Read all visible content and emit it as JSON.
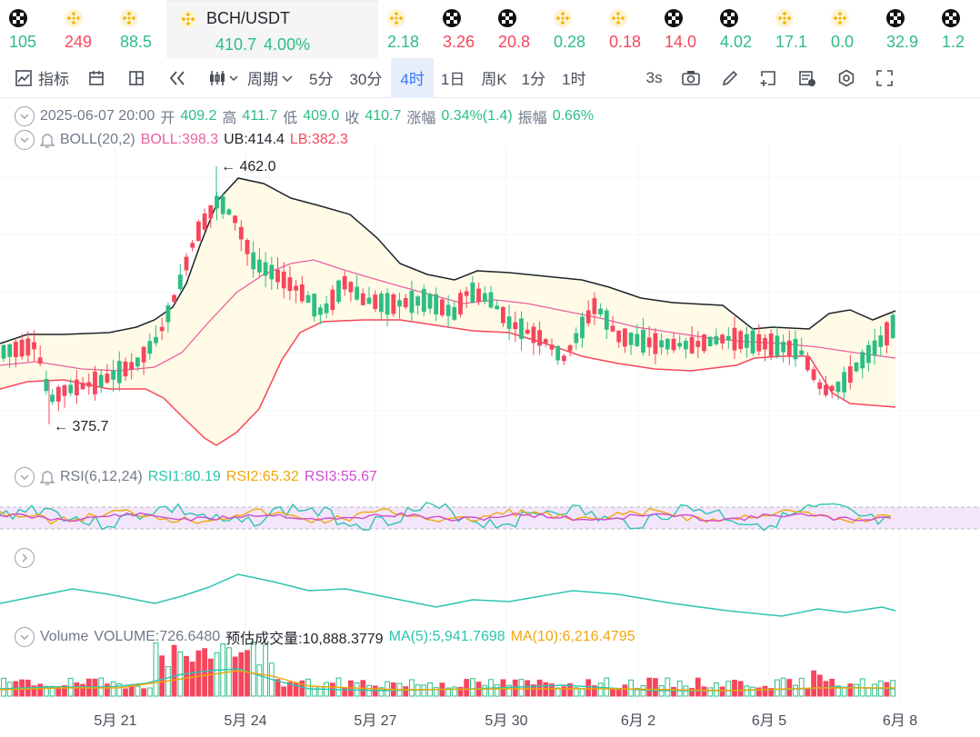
{
  "ticker": [
    {
      "icon": "okx-icon",
      "price": "105",
      "dir": "up"
    },
    {
      "icon": "bnb-icon",
      "price": "249",
      "dir": "down"
    },
    {
      "icon": "bnb-icon",
      "price": "88.5",
      "dir": "up"
    },
    {
      "icon": "bnb-icon",
      "pair": "BCH/USDT",
      "price": "410.7",
      "change": "4.00%",
      "dir": "up",
      "active": true
    },
    {
      "icon": "bnb-icon",
      "price": "2.18",
      "dir": "up"
    },
    {
      "icon": "okx-icon",
      "price": "3.26",
      "dir": "down"
    },
    {
      "icon": "okx-icon",
      "price": "20.8",
      "dir": "down"
    },
    {
      "icon": "bnb-icon",
      "price": "0.28",
      "dir": "up"
    },
    {
      "icon": "bnb-icon",
      "price": "0.18",
      "dir": "down"
    },
    {
      "icon": "okx-icon",
      "price": "14.0",
      "dir": "down"
    },
    {
      "icon": "okx-icon",
      "price": "4.02",
      "dir": "up"
    },
    {
      "icon": "bnb-icon",
      "price": "17.1",
      "dir": "up"
    },
    {
      "icon": "bnb-icon",
      "price": "0.0",
      "dir": "up"
    },
    {
      "icon": "okx-icon",
      "price": "32.9",
      "dir": "up"
    },
    {
      "icon": "okx-icon",
      "price": "1.2",
      "dir": "up"
    }
  ],
  "toolbar": {
    "indicators": "指标",
    "period": "周期",
    "intervals": [
      "5分",
      "30分",
      "4时",
      "1日",
      "周K",
      "1分",
      "1时"
    ],
    "active_interval": "4时",
    "refresh": "3s"
  },
  "ohlc": {
    "datetime": "2025-06-07 20:00",
    "open_label": "开",
    "open": "409.2",
    "high_label": "高",
    "high": "411.7",
    "low_label": "低",
    "low": "409.0",
    "close_label": "收",
    "close": "410.7",
    "change_label": "涨幅",
    "change": "0.34%(1.4)",
    "amp_label": "振幅",
    "amp": "0.66%"
  },
  "boll": {
    "name": "BOLL(20,2)",
    "boll": "BOLL:398.3",
    "ub": "UB:414.4",
    "lb": "LB:382.3"
  },
  "rsi": {
    "name": "RSI(6,12,24)",
    "rsi1": "RSI1:80.19",
    "rsi2": "RSI2:65.32",
    "rsi3": "RSI3:55.67"
  },
  "volume": {
    "name": "Volume",
    "vol": "VOLUME:726.6480",
    "est": "预估成交量:10,888.3779",
    "ma5": "MA(5):5,941.7698",
    "ma10": "MA(10):6,216.4795"
  },
  "annotations": {
    "high_marker": "← 462.0",
    "low_marker": "← 375.7"
  },
  "x_labels": [
    "5月 21",
    "5月 24",
    "5月 27",
    "5月 30",
    "6月 2",
    "6月 5",
    "6月 8"
  ],
  "colors": {
    "up": "#2ebd85",
    "down": "#f6465d",
    "accent": "#3375f6",
    "band_fill": "#fffbe6"
  }
}
